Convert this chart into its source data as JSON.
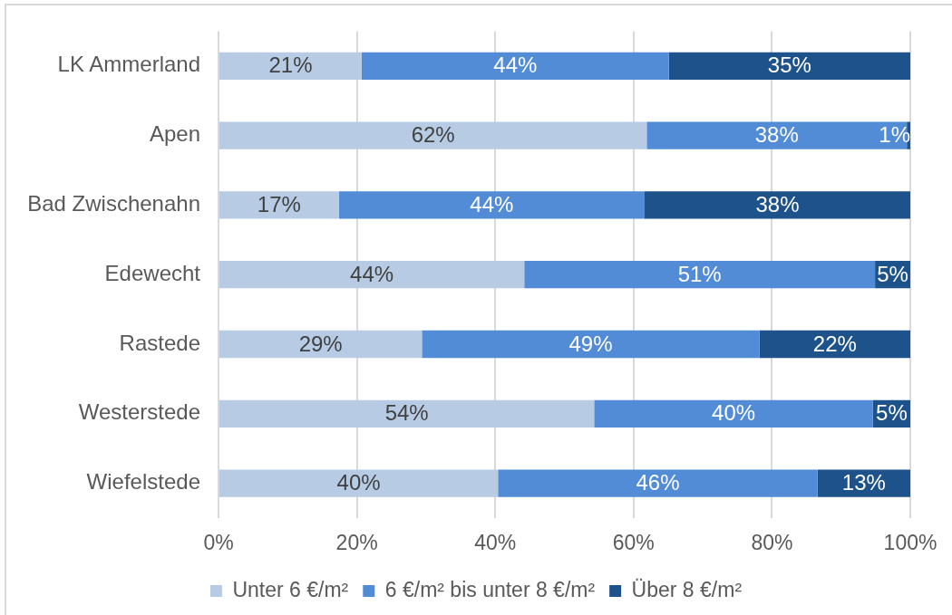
{
  "chart_data": {
    "type": "bar",
    "orientation": "horizontal",
    "stacked": true,
    "categories": [
      "LK Ammerland",
      "Apen",
      "Bad Zwischenahn",
      "Edewecht",
      "Rastede",
      "Westerstede",
      "Wiefelstede"
    ],
    "series": [
      {
        "name": "Unter 6 €/m²",
        "color": "#b7cce4",
        "values": [
          20.7,
          61.9,
          17.4,
          44.2,
          29.4,
          54.3,
          40.4
        ],
        "value_labels": [
          "21%",
          "62%",
          "17%",
          "44%",
          "29%",
          "54%",
          "40%"
        ]
      },
      {
        "name": "6 €/m² bis unter 8 €/m²",
        "color": "#528bd6",
        "values": [
          44.4,
          37.6,
          44.2,
          50.7,
          48.8,
          40.3,
          46.2
        ],
        "value_labels": [
          "44%",
          "38%",
          "44%",
          "51%",
          "49%",
          "40%",
          "46%"
        ]
      },
      {
        "name": "Über 8 €/m²",
        "color": "#1d538a",
        "values": [
          34.9,
          0.5,
          38.4,
          5.1,
          21.8,
          5.4,
          13.4
        ],
        "value_labels": [
          "35%",
          "1%",
          "38%",
          "5%",
          "22%",
          "5%",
          "13%"
        ]
      }
    ],
    "xlim": [
      0,
      100
    ],
    "xticks": [
      {
        "value": 0,
        "label": "0%"
      },
      {
        "value": 20,
        "label": "20%"
      },
      {
        "value": 40,
        "label": "40%"
      },
      {
        "value": 60,
        "label": "60%"
      },
      {
        "value": 80,
        "label": "80%"
      },
      {
        "value": 100,
        "label": "100%"
      }
    ],
    "grid": "x",
    "legend": "bottom"
  }
}
